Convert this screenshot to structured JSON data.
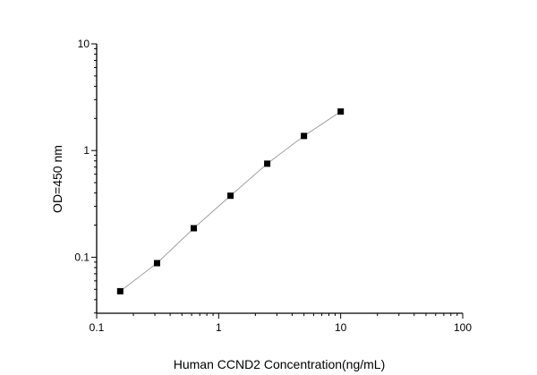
{
  "chart_data": {
    "type": "scatter",
    "title": "",
    "xlabel": "Human CCND2 Concentration(ng/mL)",
    "ylabel": "OD=450 nm",
    "xscale": "log",
    "yscale": "log",
    "xlim": [
      0.1,
      100
    ],
    "ylim": [
      0.03,
      10
    ],
    "xticks": [
      "0.1",
      "1",
      "10",
      "100"
    ],
    "yticks": [
      "0.1",
      "1",
      "10"
    ],
    "grid": false,
    "legend": "none",
    "marker": "square",
    "line": "connected",
    "colors": {
      "marker": "#000000",
      "line": "#a0a0a0",
      "axis": "#000000"
    },
    "series": [
      {
        "x": [
          0.156,
          0.3125,
          0.625,
          1.25,
          2.5,
          5,
          10
        ],
        "y": [
          0.048,
          0.088,
          0.187,
          0.377,
          0.753,
          1.37,
          2.32
        ]
      }
    ]
  }
}
